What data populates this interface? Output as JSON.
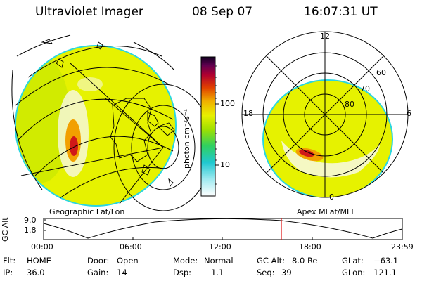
{
  "header": {
    "instrument": "Ultraviolet Imager",
    "date": "08 Sep 07",
    "time": "16:07:31 UT"
  },
  "left_panel": {
    "caption": "Geographic Lat/Lon"
  },
  "right_panel": {
    "caption": "Apex MLat/MLT",
    "mlt_labels": [
      "12",
      "18",
      "6",
      "0"
    ],
    "lat_labels": [
      "60",
      "70",
      "80"
    ]
  },
  "colorbar": {
    "unit_label": "photon cm⁻²s⁻¹",
    "tick_labels": [
      "100",
      "10"
    ]
  },
  "altitude_plot": {
    "ylabel": "GC Alt",
    "y_ticks": [
      "9.0",
      "1.8"
    ],
    "x_ticks": [
      "00:00",
      "06:00",
      "12:00",
      "18:00",
      "23:59"
    ],
    "marker_time": "16:07"
  },
  "info": {
    "flt_label": "Flt:",
    "flt_value": "HOME",
    "ip_label": "IP:",
    "ip_value": "36.0",
    "door_label": "Door:",
    "door_value": "Open",
    "gain_label": "Gain:",
    "gain_value": "14",
    "mode_label": "Mode:",
    "mode_value": "Normal",
    "dsp_label": "Dsp:",
    "dsp_value": "1.1",
    "gcalt_label": "GC Alt:",
    "gcalt_value": "8.0 Re",
    "seq_label": "Seq:",
    "seq_value": "39",
    "glat_label": "GLat:",
    "glat_value": "−63.1",
    "glon_label": "GLon:",
    "glon_value": "121.1"
  },
  "colors": {
    "disk_yellow": "#e6f200",
    "disk_green": "#bfe600",
    "limb_cyan": "#2ad6e0",
    "aurora_white": "#f6f8d8",
    "aurora_orange": "#f2a000",
    "aurora_red": "#d01818",
    "marker_red": "#e01010"
  }
}
